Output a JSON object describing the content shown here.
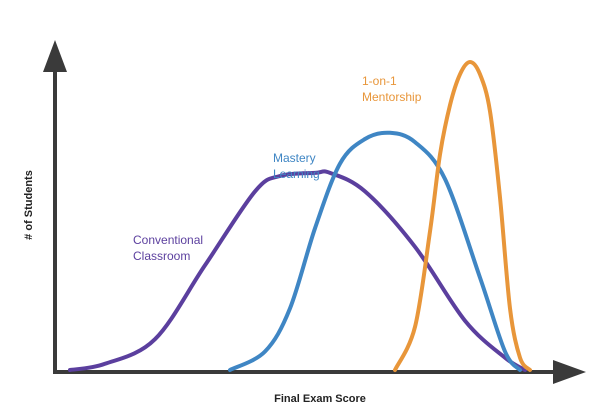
{
  "chart_data": {
    "type": "line",
    "title": "",
    "xlabel": "Final Exam Score",
    "ylabel": "# of Students",
    "grid": false,
    "legend": "inline labels",
    "axis_color": "#3a3a3a",
    "xlim": [
      0,
      100
    ],
    "ylim": [
      0,
      100
    ],
    "series": [
      {
        "name": "Conventional Classroom",
        "label_lines": [
          "Conventional",
          "Classroom"
        ],
        "color": "#5b3f9e",
        "x": [
          3,
          10,
          20,
          30,
          40,
          45,
          52,
          55,
          62,
          72,
          82,
          90,
          94
        ],
        "y": [
          0,
          2,
          10,
          34,
          58,
          63,
          64,
          64,
          58,
          40,
          16,
          4,
          0
        ]
      },
      {
        "name": "Mastery Learning",
        "label_lines": [
          "Mastery",
          "Learning"
        ],
        "color": "#3f86c4",
        "x": [
          35,
          42,
          47,
          52,
          57,
          62,
          67,
          72,
          78,
          85,
          90,
          93
        ],
        "y": [
          0,
          6,
          20,
          46,
          67,
          75,
          77,
          74,
          62,
          30,
          6,
          0
        ]
      },
      {
        "name": "1-on-1 Mentorship",
        "label_lines": [
          "1-on-1",
          "Mentorship"
        ],
        "color": "#e8963a",
        "x": [
          68,
          72,
          75,
          77,
          79,
          81,
          83,
          85,
          87,
          89,
          91,
          93,
          95
        ],
        "y": [
          0,
          14,
          45,
          70,
          86,
          96,
          100,
          96,
          84,
          56,
          20,
          4,
          0
        ]
      }
    ]
  }
}
